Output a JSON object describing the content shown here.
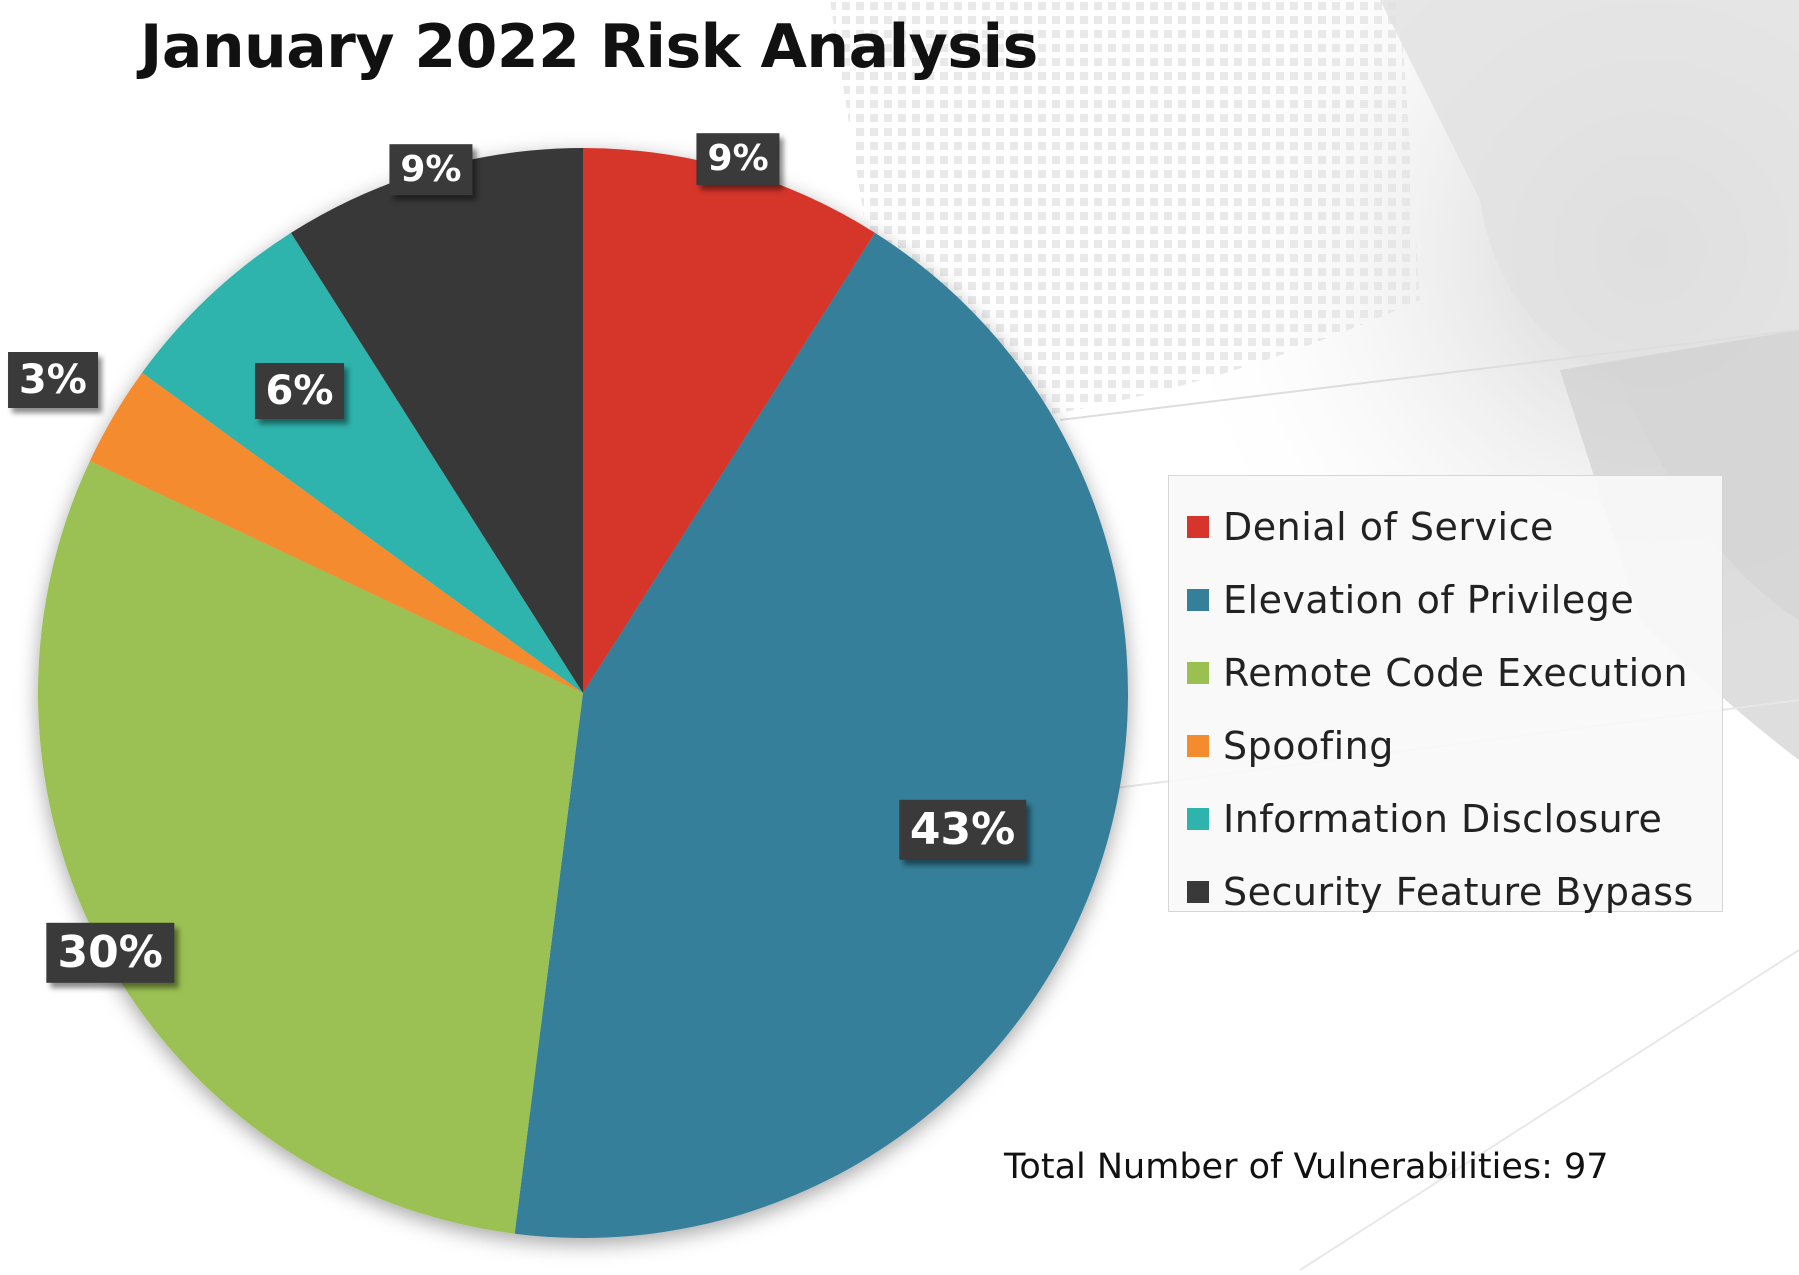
{
  "title": "January 2022 Risk Analysis",
  "total_text": "Total Number of Vulnerabilities: 97",
  "chart_data": {
    "type": "pie",
    "title": "January 2022 Risk Analysis",
    "legend_position": "right",
    "series": [
      {
        "name": "Denial of Service",
        "value": 9,
        "label": "9%",
        "color": "#d6352b"
      },
      {
        "name": "Elevation of Privilege",
        "value": 43,
        "label": "43%",
        "color": "#367f9a"
      },
      {
        "name": "Remote Code Execution",
        "value": 30,
        "label": "30%",
        "color": "#9bc052"
      },
      {
        "name": "Spoofing",
        "value": 3,
        "label": "3%",
        "color": "#f48b2e"
      },
      {
        "name": "Information Disclosure",
        "value": 6,
        "label": "6%",
        "color": "#2fb3ad"
      },
      {
        "name": "Security Feature Bypass",
        "value": 9,
        "label": "9%",
        "color": "#393939"
      }
    ]
  }
}
